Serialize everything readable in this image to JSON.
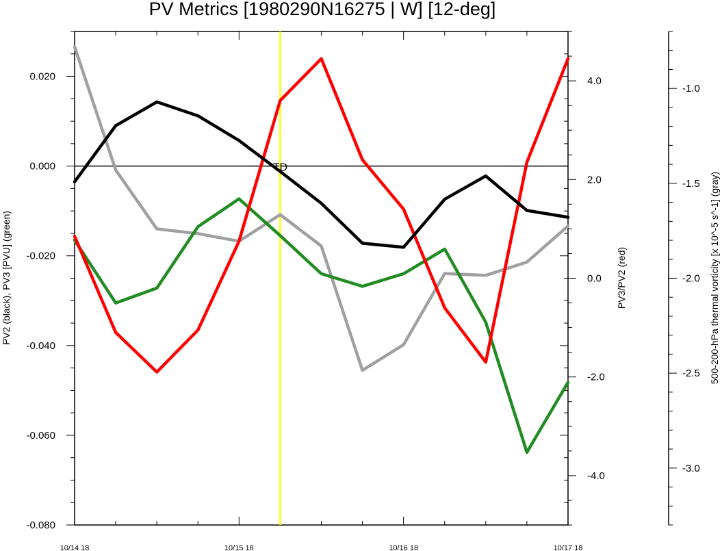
{
  "chart_data": {
    "type": "line",
    "title": "PV Metrics [1980290N16275 | W] [12-deg]",
    "x_ticks": [
      "10/14 18",
      "10/15 18",
      "10/16 18",
      "10/17 18"
    ],
    "x": [
      0,
      0.25,
      0.5,
      0.75,
      1.0,
      1.25,
      1.5,
      1.75,
      2.0,
      2.25,
      2.5,
      2.75,
      3.0
    ],
    "xlim": [
      0,
      3
    ],
    "axes": {
      "left": {
        "label": "PV2 (black), PV3 [PVU] (green)",
        "ylim": [
          -0.08,
          0.03
        ],
        "ticks": [
          0.02,
          0.0,
          -0.02,
          -0.04,
          -0.06,
          -0.08
        ],
        "tick_labels": [
          "0.020",
          "0.000",
          "-0.020",
          "-0.040",
          "-0.060",
          "-0.080"
        ]
      },
      "right": {
        "label": "PV3/PV2 (red)",
        "ylim": [
          -5.0,
          5.0
        ],
        "ticks": [
          4.0,
          2.0,
          0.0,
          -2.0,
          -4.0
        ],
        "tick_labels": [
          "4.0",
          "2.0",
          "0.0",
          "-2.0",
          "-4.0"
        ]
      },
      "far_right": {
        "label": "500-200-hPa thermal vorticity [x 10^-5 s^-1] (gray)",
        "ylim": [
          -3.3,
          -0.7
        ],
        "ticks": [
          -1.0,
          -1.5,
          -2.0,
          -2.5,
          -3.0
        ],
        "tick_labels": [
          "-1.0",
          "-1.5",
          "-2.0",
          "-2.5",
          "-3.0"
        ]
      }
    },
    "series": [
      {
        "name": "PV2",
        "axis": "left",
        "color": "#000000",
        "values": [
          -0.0035,
          0.009,
          0.0143,
          0.0112,
          0.0057,
          -0.0012,
          -0.0083,
          -0.0172,
          -0.0181,
          -0.0074,
          -0.0022,
          -0.0099,
          -0.0114
        ]
      },
      {
        "name": "PV3",
        "axis": "left",
        "color": "#228B22",
        "values": [
          -0.0165,
          -0.0305,
          -0.0272,
          -0.0135,
          -0.0073,
          -0.0155,
          -0.024,
          -0.0268,
          -0.024,
          -0.0185,
          -0.0348,
          -0.0638,
          -0.0482
        ]
      },
      {
        "name": "PV3/PV2",
        "axis": "right",
        "color": "#FF0000",
        "values": [
          0.85,
          -1.1,
          -1.9,
          -1.05,
          0.75,
          3.6,
          4.45,
          2.4,
          1.4,
          -0.6,
          -1.7,
          2.35,
          4.45
        ]
      },
      {
        "name": "thermal vorticity",
        "axis": "far_right",
        "color": "#A0A0A0",
        "values": [
          -0.78,
          -1.43,
          -1.74,
          -1.765,
          -1.805,
          -1.665,
          -1.83,
          -2.485,
          -2.35,
          -1.975,
          -1.985,
          -1.915,
          -1.725
        ]
      }
    ],
    "zero_line": {
      "axis": "left",
      "value": 0.0
    },
    "marker_line": {
      "x": 1.25,
      "color": "#FFFF00",
      "label": "TD",
      "label_y": 0.0
    }
  }
}
